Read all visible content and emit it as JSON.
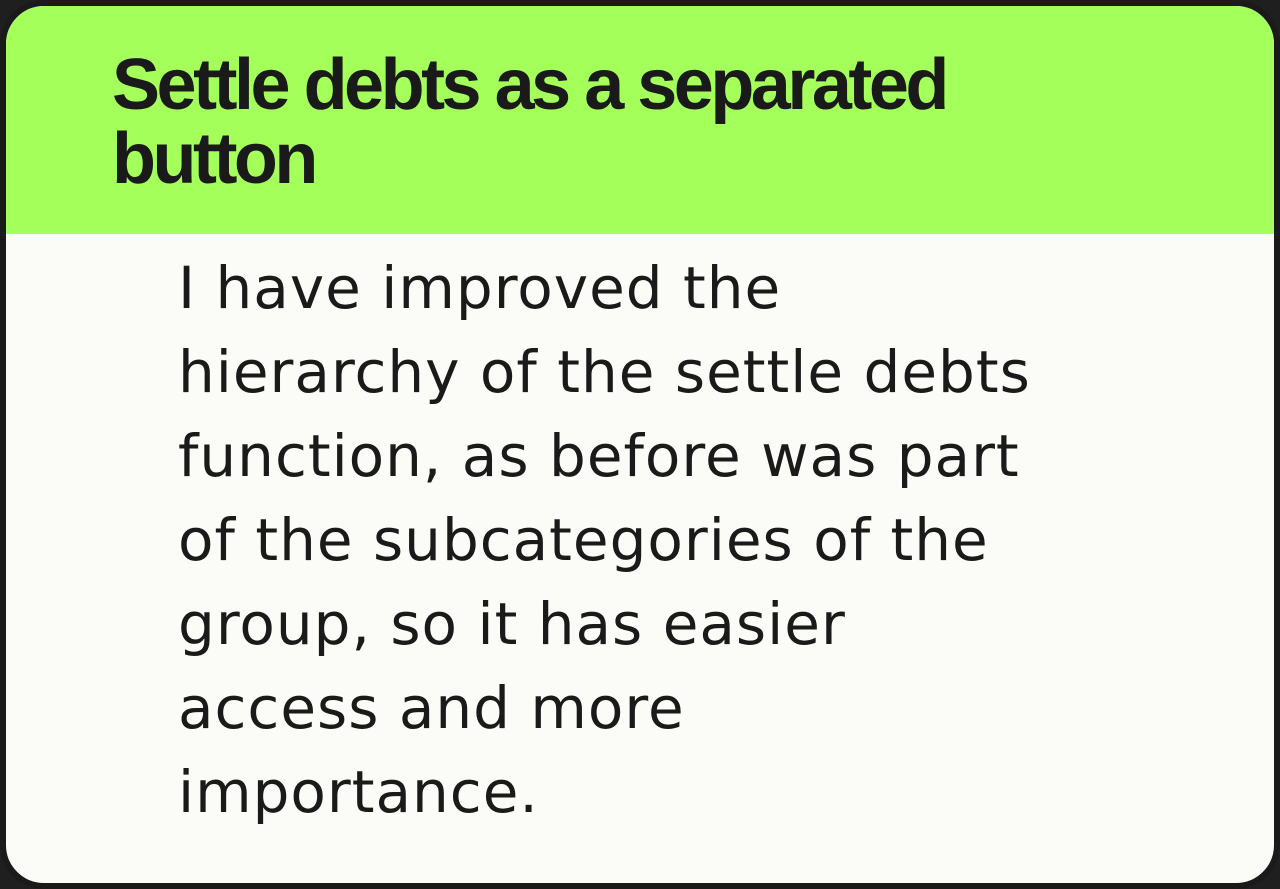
{
  "card": {
    "title": "Settle debts  as a separated\nbutton",
    "body": "I have improved the\nhierarchy of the settle debts\nfunction, as before was part\nof the subcategories of the\ngroup, so it has easier\naccess and more\nimportance."
  },
  "colors": {
    "header_background": "#a4ff5a",
    "card_background": "#fbfbf7",
    "border": "#1a1a1a",
    "text": "#1a1a1a"
  }
}
